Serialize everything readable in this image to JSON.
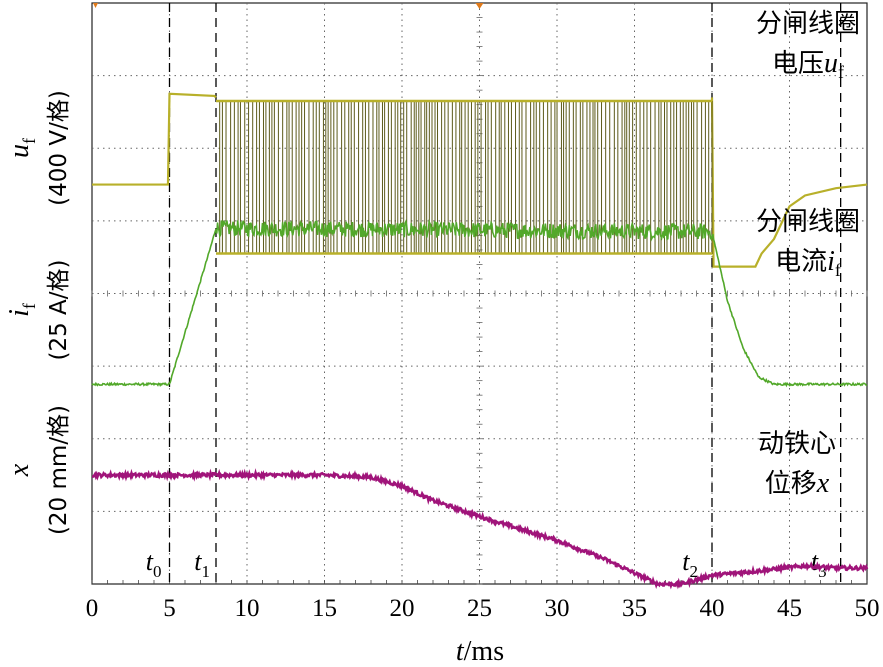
{
  "chart_data": {
    "type": "line",
    "x_axis": {
      "label_var": "t",
      "label_unit": "/ms",
      "range": [
        0,
        50
      ],
      "ticks": [
        "0",
        "5",
        "10",
        "15",
        "20",
        "25",
        "30",
        "35",
        "40",
        "45",
        "50"
      ]
    },
    "grid": "dotted, 10 x 8 divisions",
    "y_axes": [
      {
        "var": "u",
        "sub": "f",
        "scale": "(400 V/格)"
      },
      {
        "var": "i",
        "sub": "f",
        "scale": "(25 A/格)"
      },
      {
        "var": "x",
        "sub": "",
        "scale": "(20 mm/格)"
      }
    ],
    "series": [
      {
        "name_cn": "分闸线圈",
        "name_cn2": "电压",
        "name_var": "u",
        "name_sub": "f",
        "color": "#b8b02a",
        "x_ms": [
          0,
          4.9,
          5.0,
          7.9,
          8.0,
          40.0,
          40.1,
          42.8,
          43.2,
          44.0,
          45.0,
          46.0,
          48.0,
          50.0
        ],
        "y_div": [
          5.5,
          5.5,
          6.75,
          6.72,
          6.7,
          6.7,
          4.37,
          4.37,
          4.55,
          4.75,
          5.2,
          5.35,
          5.45,
          5.5
        ],
        "pwm": {
          "from_ms": 8.0,
          "to_ms": 40.0,
          "high_div": 6.65,
          "low_div": 4.55,
          "period_ms": 0.35
        }
      },
      {
        "name_cn": "分闸线圈",
        "name_cn2": "电流",
        "name_var": "i",
        "name_sub": "f",
        "color": "#52a82a",
        "x_ms": [
          0,
          5.0,
          7.6,
          8.0,
          40.0,
          41.0,
          42.0,
          43.0,
          44.0,
          50.0
        ],
        "y_div": [
          2.75,
          2.75,
          4.6,
          4.9,
          4.85,
          3.9,
          3.25,
          2.85,
          2.75,
          2.75
        ],
        "noise_from_ms": 8.0,
        "noise_to_ms": 40.0
      },
      {
        "name_cn": "动铁心",
        "name_cn2": "位移",
        "name_var": "x",
        "name_sub": "",
        "color": "#a0147a",
        "x_ms": [
          0,
          15,
          18,
          20,
          22,
          25,
          30,
          33,
          35,
          36.5,
          38,
          40,
          43,
          46,
          48,
          50
        ],
        "y_div": [
          1.5,
          1.5,
          1.47,
          1.35,
          1.15,
          0.93,
          0.6,
          0.35,
          0.15,
          0.0,
          0.0,
          0.12,
          0.18,
          0.25,
          0.22,
          0.22
        ]
      }
    ],
    "markers": [
      {
        "var": "t",
        "sub": "0",
        "x_ms": 5.0
      },
      {
        "var": "t",
        "sub": "1",
        "x_ms": 8.0
      },
      {
        "var": "t",
        "sub": "2",
        "x_ms": 40.0
      },
      {
        "var": "t",
        "sub": "3",
        "x_ms": 48.3
      }
    ]
  }
}
